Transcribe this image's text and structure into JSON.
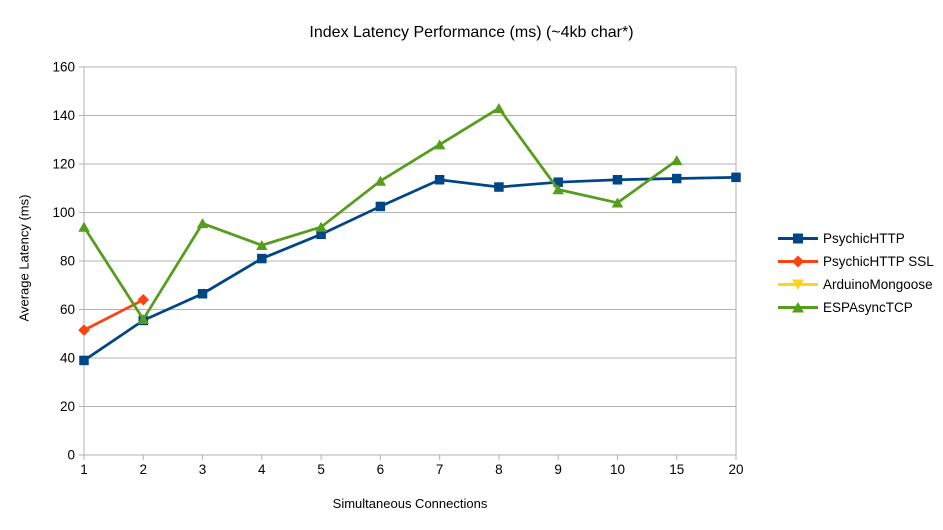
{
  "chart_data": {
    "type": "line",
    "title": "Index Latency Performance (ms) (~4kb char*)",
    "xlabel": "Simultaneous Connections",
    "ylabel": "Average Latency (ms)",
    "categories": [
      "1",
      "2",
      "3",
      "4",
      "5",
      "6",
      "7",
      "8",
      "9",
      "10",
      "15",
      "20"
    ],
    "ylim": [
      0,
      160
    ],
    "yticks": [
      0,
      20,
      40,
      60,
      80,
      100,
      120,
      140,
      160
    ],
    "grid": "horizontal-only",
    "legend_position": "right",
    "colors": {
      "grid": "#b3b3b3",
      "axis": "#b3b3b3",
      "text": "#000000",
      "background": "#ffffff"
    },
    "series": [
      {
        "name": "PsychicHTTP",
        "color": "#004586",
        "marker": "square",
        "values": [
          39,
          55.5,
          66.5,
          81,
          91,
          102.5,
          113.5,
          110.5,
          112.5,
          113.5,
          114,
          114.5
        ]
      },
      {
        "name": "PsychicHTTP SSL",
        "color": "#ff420e",
        "marker": "diamond",
        "values": [
          51.5,
          64,
          null,
          null,
          null,
          null,
          null,
          null,
          null,
          null,
          null,
          null
        ]
      },
      {
        "name": "ArduinoMongoose",
        "color": "#ffd320",
        "marker": "triangle-down",
        "values": [
          null,
          null,
          null,
          null,
          null,
          null,
          null,
          null,
          null,
          null,
          null,
          null
        ]
      },
      {
        "name": "ESPAsyncTCP",
        "color": "#579d1c",
        "marker": "triangle-up",
        "values": [
          94,
          56,
          95.5,
          86.5,
          94,
          113,
          128,
          143,
          109.5,
          104,
          121.5,
          null
        ]
      }
    ]
  }
}
